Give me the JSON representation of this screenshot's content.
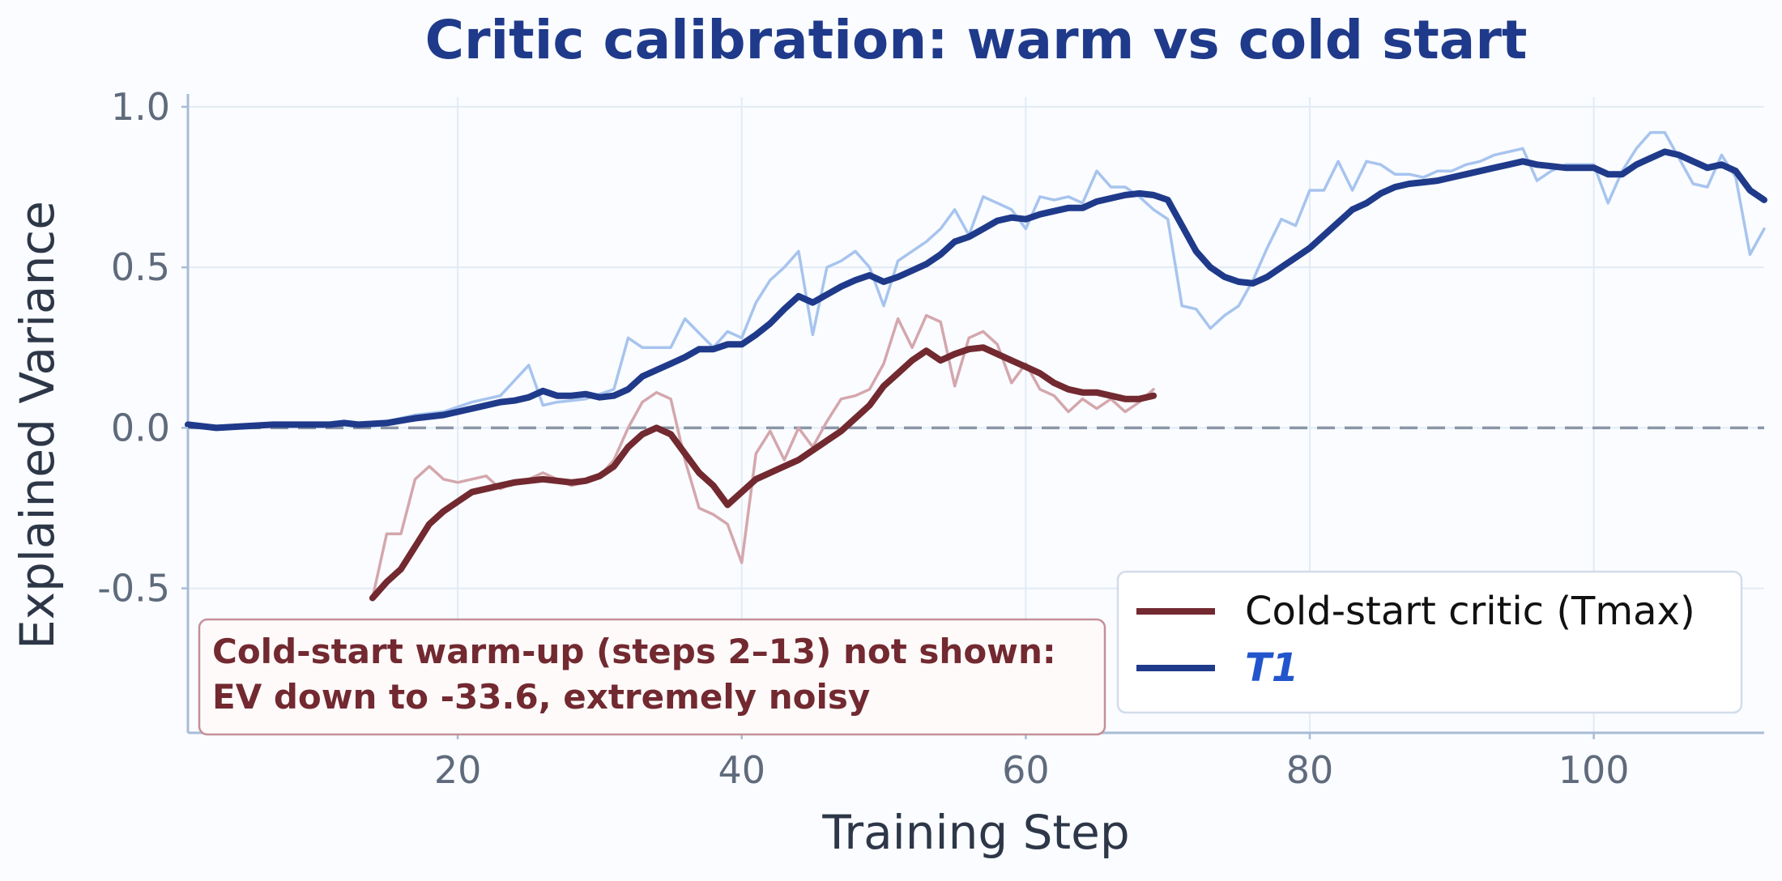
{
  "chart_data": {
    "type": "line",
    "title": "Critic calibration: warm vs cold start",
    "xlabel": "Training Step",
    "ylabel": "Explained Variance",
    "xlim": [
      1,
      112
    ],
    "ylim": [
      -0.95,
      1.03
    ],
    "x_ticks": [
      20,
      40,
      60,
      80,
      100
    ],
    "x_tick_labels": [
      "20",
      "40",
      "60",
      "80",
      "100"
    ],
    "y_ticks": [
      -0.5,
      0.0,
      0.5,
      1.0
    ],
    "y_tick_labels": [
      "-0.5",
      "0.0",
      "0.5",
      "1.0"
    ],
    "grid": true,
    "reference_line": {
      "y": 0.0,
      "style": "dashed",
      "color": "#8a96a6"
    },
    "legend": {
      "placement": "lower-right",
      "entries": [
        {
          "label": "Cold-start critic (Tmax)",
          "color": "#722930",
          "italic": false
        },
        {
          "label": "T1",
          "color": "#1f3a8a",
          "text_color": "#2255cc",
          "italic": true
        }
      ]
    },
    "annotation": {
      "lines": [
        "Cold-start warm-up (steps 2–13) not shown:",
        "EV down to -33.6, extremely noisy"
      ],
      "color": "#722930",
      "border_color": "#c49098"
    },
    "series": [
      {
        "name": "T1",
        "role": "smoothed",
        "color": "#1f3a8a",
        "x": [
          1,
          3,
          5,
          7,
          9,
          11,
          12,
          13,
          15,
          17,
          19,
          21,
          23,
          24,
          25,
          26,
          27,
          28,
          29,
          30,
          31,
          32,
          33,
          34,
          35,
          36,
          37,
          38,
          39,
          40,
          41,
          42,
          43,
          44,
          45,
          46,
          47,
          48,
          49,
          50,
          51,
          52,
          53,
          54,
          55,
          56,
          57,
          58,
          59,
          60,
          61,
          62,
          63,
          64,
          65,
          66,
          67,
          68,
          69,
          70,
          71,
          72,
          73,
          74,
          75,
          76,
          77,
          78,
          79,
          80,
          81,
          82,
          83,
          84,
          85,
          86,
          87,
          88,
          89,
          90,
          91,
          92,
          93,
          94,
          95,
          96,
          97,
          98,
          99,
          100,
          101,
          102,
          103,
          104,
          105,
          106,
          107,
          108,
          109,
          110,
          111,
          112
        ],
        "y": [
          0.01,
          0.0,
          0.005,
          0.01,
          0.01,
          0.01,
          0.015,
          0.01,
          0.015,
          0.03,
          0.04,
          0.06,
          0.08,
          0.085,
          0.095,
          0.115,
          0.1,
          0.1,
          0.105,
          0.095,
          0.1,
          0.12,
          0.16,
          0.18,
          0.2,
          0.22,
          0.245,
          0.245,
          0.26,
          0.26,
          0.29,
          0.325,
          0.37,
          0.41,
          0.39,
          0.415,
          0.44,
          0.46,
          0.475,
          0.455,
          0.47,
          0.49,
          0.51,
          0.54,
          0.58,
          0.595,
          0.62,
          0.645,
          0.655,
          0.65,
          0.665,
          0.675,
          0.685,
          0.685,
          0.705,
          0.715,
          0.725,
          0.73,
          0.725,
          0.71,
          0.63,
          0.55,
          0.5,
          0.47,
          0.455,
          0.45,
          0.47,
          0.5,
          0.53,
          0.56,
          0.6,
          0.64,
          0.68,
          0.7,
          0.73,
          0.75,
          0.76,
          0.765,
          0.77,
          0.78,
          0.79,
          0.8,
          0.81,
          0.82,
          0.83,
          0.82,
          0.815,
          0.81,
          0.81,
          0.81,
          0.79,
          0.79,
          0.82,
          0.84,
          0.86,
          0.85,
          0.83,
          0.81,
          0.82,
          0.8,
          0.74,
          0.71
        ]
      },
      {
        "name": "T1",
        "role": "raw",
        "color": "#a7c4ee",
        "x": [
          1,
          3,
          5,
          7,
          9,
          11,
          13,
          15,
          17,
          19,
          21,
          23,
          25,
          26,
          27,
          29,
          31,
          32,
          33,
          35,
          36,
          38,
          39,
          40,
          41,
          42,
          43,
          44,
          45,
          46,
          47,
          48,
          49,
          50,
          51,
          52,
          53,
          54,
          55,
          56,
          57,
          58,
          59,
          60,
          61,
          62,
          63,
          64,
          65,
          66,
          67,
          68,
          69,
          70,
          71,
          72,
          73,
          74,
          75,
          76,
          77,
          78,
          79,
          80,
          81,
          82,
          83,
          84,
          85,
          86,
          87,
          88,
          89,
          90,
          91,
          92,
          93,
          94,
          95,
          96,
          97,
          98,
          99,
          100,
          101,
          102,
          103,
          104,
          105,
          106,
          107,
          108,
          109,
          110,
          111,
          112
        ],
        "y": [
          0.01,
          0.0,
          0.01,
          0.01,
          0.015,
          0.015,
          0.01,
          0.02,
          0.04,
          0.05,
          0.08,
          0.1,
          0.195,
          0.07,
          0.08,
          0.09,
          0.12,
          0.28,
          0.25,
          0.25,
          0.34,
          0.25,
          0.3,
          0.28,
          0.39,
          0.46,
          0.5,
          0.55,
          0.29,
          0.5,
          0.52,
          0.55,
          0.5,
          0.38,
          0.52,
          0.55,
          0.58,
          0.62,
          0.68,
          0.6,
          0.72,
          0.7,
          0.68,
          0.62,
          0.72,
          0.71,
          0.72,
          0.7,
          0.8,
          0.75,
          0.75,
          0.72,
          0.68,
          0.65,
          0.38,
          0.37,
          0.31,
          0.35,
          0.38,
          0.46,
          0.56,
          0.65,
          0.63,
          0.74,
          0.74,
          0.83,
          0.74,
          0.83,
          0.82,
          0.79,
          0.79,
          0.78,
          0.8,
          0.8,
          0.82,
          0.83,
          0.85,
          0.86,
          0.87,
          0.77,
          0.8,
          0.82,
          0.82,
          0.82,
          0.7,
          0.8,
          0.87,
          0.92,
          0.92,
          0.84,
          0.76,
          0.75,
          0.85,
          0.78,
          0.54,
          0.62
        ]
      },
      {
        "name": "Cold-start critic (Tmax)",
        "role": "smoothed",
        "color": "#722930",
        "x": [
          14,
          15,
          16,
          17,
          18,
          19,
          20,
          21,
          22,
          23,
          24,
          25,
          26,
          27,
          28,
          29,
          30,
          31,
          32,
          33,
          34,
          35,
          36,
          37,
          38,
          39,
          40,
          41,
          42,
          43,
          44,
          45,
          46,
          47,
          48,
          49,
          50,
          51,
          52,
          53,
          54,
          55,
          56,
          57,
          58,
          59,
          60,
          61,
          62,
          63,
          64,
          65,
          66,
          67,
          68,
          69
        ],
        "y": [
          -0.53,
          -0.48,
          -0.44,
          -0.37,
          -0.3,
          -0.26,
          -0.23,
          -0.2,
          -0.19,
          -0.18,
          -0.17,
          -0.165,
          -0.16,
          -0.165,
          -0.17,
          -0.165,
          -0.15,
          -0.12,
          -0.06,
          -0.02,
          0.0,
          -0.02,
          -0.08,
          -0.14,
          -0.18,
          -0.24,
          -0.2,
          -0.16,
          -0.14,
          -0.12,
          -0.1,
          -0.07,
          -0.04,
          -0.01,
          0.03,
          0.07,
          0.13,
          0.17,
          0.21,
          0.24,
          0.21,
          0.23,
          0.245,
          0.25,
          0.23,
          0.21,
          0.19,
          0.17,
          0.14,
          0.12,
          0.11,
          0.11,
          0.1,
          0.09,
          0.09,
          0.1
        ]
      },
      {
        "name": "Cold-start critic (Tmax)",
        "role": "raw",
        "color": "#d4a7ad",
        "x": [
          14,
          15,
          16,
          17,
          18,
          19,
          20,
          21,
          22,
          23,
          24,
          25,
          26,
          27,
          28,
          29,
          30,
          31,
          32,
          33,
          34,
          35,
          36,
          37,
          38,
          39,
          40,
          41,
          42,
          43,
          44,
          45,
          46,
          47,
          48,
          49,
          50,
          51,
          52,
          53,
          54,
          55,
          56,
          57,
          58,
          59,
          60,
          61,
          62,
          63,
          64,
          65,
          66,
          67,
          68,
          69
        ],
        "y": [
          -0.53,
          -0.33,
          -0.33,
          -0.16,
          -0.12,
          -0.16,
          -0.17,
          -0.16,
          -0.15,
          -0.19,
          -0.17,
          -0.16,
          -0.14,
          -0.16,
          -0.18,
          -0.17,
          -0.15,
          -0.1,
          0.0,
          0.08,
          0.11,
          0.09,
          -0.1,
          -0.25,
          -0.27,
          -0.3,
          -0.42,
          -0.08,
          -0.01,
          -0.1,
          0.0,
          -0.06,
          0.02,
          0.09,
          0.1,
          0.12,
          0.2,
          0.34,
          0.25,
          0.35,
          0.33,
          0.13,
          0.28,
          0.3,
          0.26,
          0.14,
          0.2,
          0.12,
          0.1,
          0.05,
          0.09,
          0.06,
          0.09,
          0.05,
          0.08,
          0.12
        ]
      }
    ]
  }
}
